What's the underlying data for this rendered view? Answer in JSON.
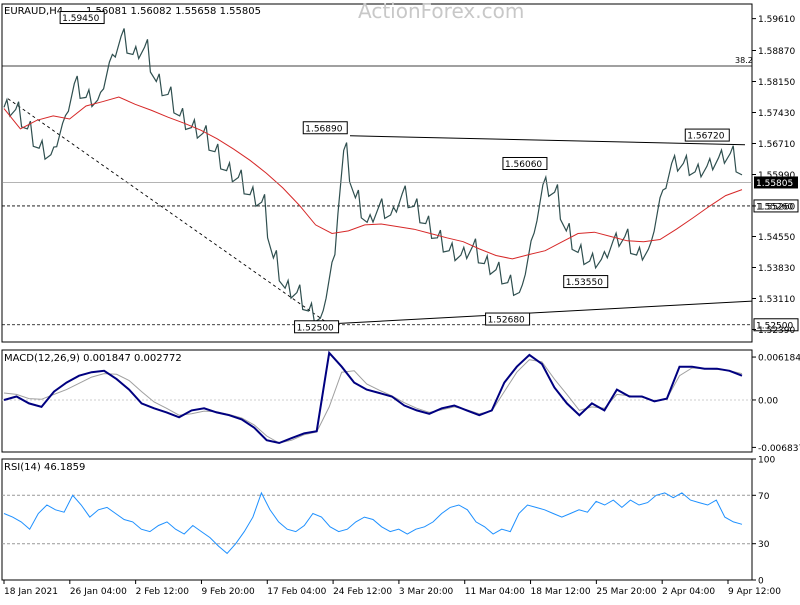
{
  "watermark": "ActionForex.com",
  "colors": {
    "candles": "#2f4f4f",
    "sma": "#d62828",
    "macd_line": "#000080",
    "macd_signal": "#a0a0a0",
    "rsi_line": "#1e90ff",
    "trend_lines": "#000000",
    "current_price_box": "#000000"
  },
  "chart_data": [
    {
      "type": "line",
      "panel": "price",
      "title": "EURAUD,H4",
      "ohlc_label": "1.56081 1.56082 1.55658 1.55805",
      "current_price": 1.55805,
      "current_price_label": "1.55805",
      "y_axis_ticks": [
        "1.59610",
        "1.58870",
        "1.58150",
        "1.57430",
        "1.56710",
        "1.55990",
        "1.55260",
        "1.54550",
        "1.53830",
        "1.53110",
        "1.52390"
      ],
      "ylim": [
        1.521,
        1.5995
      ],
      "fib_line": {
        "value": 1.5851,
        "label": "38.2"
      },
      "levels": [
        {
          "value": 1.5526,
          "label": "1.55260",
          "style": "dashed"
        },
        {
          "value": 1.525,
          "label": "1.52500",
          "style": "dashed"
        }
      ],
      "annotations": [
        {
          "label": "1.59450",
          "x": "27 Jan 2021",
          "value": 1.5945
        },
        {
          "label": "1.56890",
          "x": "24 Feb 2021",
          "value": 1.5689
        },
        {
          "label": "1.52500",
          "x": "23 Feb 2021",
          "value": 1.525
        },
        {
          "label": "1.56060",
          "x": "19 Mar 2021",
          "value": 1.5606
        },
        {
          "label": "1.52680",
          "x": "17 Mar 2021",
          "value": 1.5268
        },
        {
          "label": "1.53550",
          "x": "26 Mar 2021",
          "value": 1.5355
        },
        {
          "label": "1.56720",
          "x": "9 Apr 2021",
          "value": 1.5672
        }
      ],
      "x_labels": [
        "18 Jan 2021",
        "26 Jan 04:00",
        "2 Feb 12:00",
        "9 Feb 20:00",
        "17 Feb 04:00",
        "24 Feb 12:00",
        "3 Mar 20:00",
        "11 Mar 04:00",
        "18 Mar 12:00",
        "25 Mar 20:00",
        "2 Apr 04:00",
        "9 Apr 12:00"
      ],
      "series": [
        {
          "values": [
            1.5755,
            1.575,
            1.5705,
            1.566,
            1.5645,
            1.5718,
            1.581,
            1.5778,
            1.5772,
            1.586,
            1.592,
            1.5878,
            1.5895,
            1.5815,
            1.5785,
            1.5735,
            1.5708,
            1.5695,
            1.5652,
            1.5608,
            1.5592,
            1.5552,
            1.5535,
            1.5405,
            1.5335,
            1.5325,
            1.5282,
            1.5265,
            1.5395,
            1.5655,
            1.5545,
            1.5488,
            1.5525,
            1.5505,
            1.5555,
            1.5525,
            1.5485,
            1.5452,
            1.5422,
            1.5412,
            1.5432,
            1.5392,
            1.5378,
            1.5348,
            1.5325,
            1.5445,
            1.5575,
            1.5558,
            1.5468,
            1.5418,
            1.5398,
            1.5402,
            1.5445,
            1.5455,
            1.5412,
            1.5425,
            1.5545,
            1.5625,
            1.5625,
            1.5605,
            1.5618,
            1.5638,
            1.5648,
            1.5598
          ]
        },
        {
          "values": [
            1.5752,
            1.5705,
            1.5725,
            1.5735,
            1.5728,
            1.5758,
            1.5768,
            1.5779,
            1.5762,
            1.5748,
            1.5732,
            1.5718,
            1.5702,
            1.5682,
            1.5658,
            1.5632,
            1.5602,
            1.5568,
            1.5528,
            1.5482,
            1.5462,
            1.5468,
            1.5482,
            1.5484,
            1.5478,
            1.5472,
            1.5462,
            1.5452,
            1.5443,
            1.5426,
            1.5411,
            1.5403,
            1.5413,
            1.5422,
            1.5442,
            1.5462,
            1.5465,
            1.5455,
            1.5445,
            1.5443,
            1.5448,
            1.5472,
            1.5498,
            1.5525,
            1.555,
            1.5564
          ]
        }
      ]
    },
    {
      "type": "line",
      "panel": "macd",
      "title": "MACD(12,26,9) 0.001847 0.002772",
      "y_axis_ticks": [
        "0.006184",
        "0.00",
        "-0.006837"
      ],
      "ylim": [
        -0.0075,
        0.0072
      ],
      "series": [
        {
          "values": [
            0.0,
            0.0005,
            -0.0005,
            -0.001,
            0.0012,
            0.0025,
            0.0035,
            0.004,
            0.0042,
            0.003,
            0.0015,
            -0.0005,
            -0.0012,
            -0.0018,
            -0.0025,
            -0.0015,
            -0.0012,
            -0.0018,
            -0.0022,
            -0.0028,
            -0.004,
            -0.0058,
            -0.0062,
            -0.0055,
            -0.0048,
            -0.0045,
            0.0068,
            0.0048,
            0.0025,
            0.0015,
            0.001,
            0.0005,
            -0.0008,
            -0.0015,
            -0.002,
            -0.0012,
            -0.0008,
            -0.0015,
            -0.0022,
            -0.0015,
            0.0025,
            0.0048,
            0.0065,
            0.0052,
            0.0018,
            -0.0005,
            -0.0022,
            -0.0005,
            -0.0015,
            0.0015,
            0.0005,
            0.0005,
            -0.0002,
            0.0002,
            0.0048,
            0.0048,
            0.0045,
            0.0045,
            0.0042,
            0.0035
          ]
        },
        {
          "values": [
            0.001,
            0.0008,
            0.0002,
            0.0001,
            0.0008,
            0.0015,
            0.0024,
            0.0033,
            0.0038,
            0.0037,
            0.0028,
            0.0012,
            -0.0003,
            -0.0012,
            -0.0022,
            -0.002,
            -0.0016,
            -0.0017,
            -0.0021,
            -0.0026,
            -0.0036,
            -0.0052,
            -0.0062,
            -0.0058,
            -0.005,
            -0.0046,
            -0.001,
            0.004,
            0.0042,
            0.0023,
            0.0014,
            0.0006,
            -0.0004,
            -0.0012,
            -0.0018,
            -0.0014,
            -0.001,
            -0.0014,
            -0.002,
            -0.0016,
            0.0012,
            0.004,
            0.0058,
            0.0055,
            0.003,
            0.0008,
            -0.0015,
            -0.001,
            -0.0012,
            0.0008,
            0.0006,
            0.0004,
            -0.0002,
            0.0002,
            0.0035,
            0.0046,
            0.0045,
            0.0044,
            0.0042,
            0.0038
          ]
        }
      ]
    },
    {
      "type": "line",
      "panel": "rsi",
      "title": "RSI(14) 46.1859",
      "y_axis_ticks": [
        "100",
        "70",
        "30",
        "0"
      ],
      "ylim": [
        0,
        100
      ],
      "series": [
        {
          "values": [
            55,
            52,
            48,
            42,
            55,
            62,
            58,
            56,
            70,
            62,
            52,
            58,
            60,
            55,
            50,
            48,
            42,
            40,
            45,
            48,
            42,
            38,
            45,
            40,
            35,
            28,
            22,
            30,
            40,
            52,
            72,
            58,
            48,
            42,
            40,
            45,
            55,
            52,
            44,
            40,
            42,
            48,
            52,
            50,
            44,
            40,
            42,
            38,
            42,
            44,
            48,
            55,
            60,
            62,
            58,
            48,
            44,
            38,
            42,
            40,
            55,
            62,
            60,
            58,
            55,
            52,
            55,
            58,
            56,
            65,
            62,
            66,
            60,
            66,
            62,
            64,
            70,
            72,
            68,
            72,
            66,
            64,
            62,
            66,
            52,
            48,
            46
          ]
        }
      ]
    }
  ]
}
